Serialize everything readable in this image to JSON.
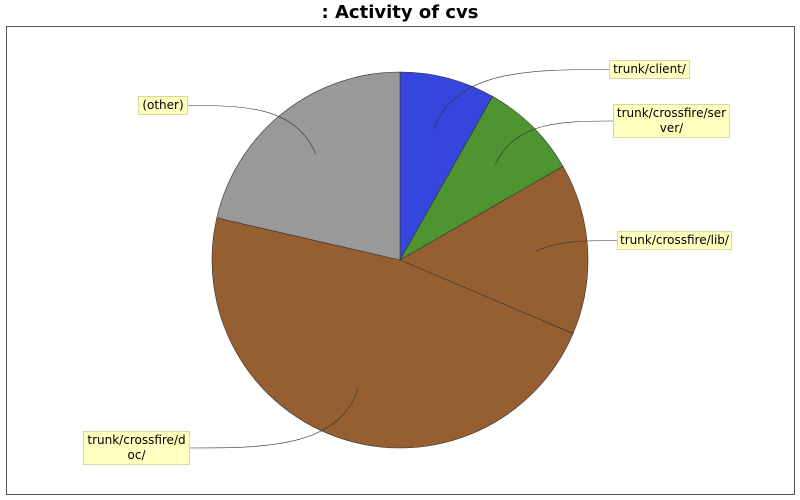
{
  "chart_data": {
    "type": "pie",
    "title": ": Activity of cvs",
    "categories": [
      "trunk/client/",
      "trunk/crossfire/server/",
      "trunk/crossfire/lib/",
      "trunk/crossfire/doc/",
      "(other)"
    ],
    "values": [
      8.2,
      8.5,
      14.7,
      47.2,
      21.4
    ],
    "colors": [
      "#3446dc",
      "#4e9532",
      "#955f32",
      "#955f32",
      "#999999"
    ]
  }
}
